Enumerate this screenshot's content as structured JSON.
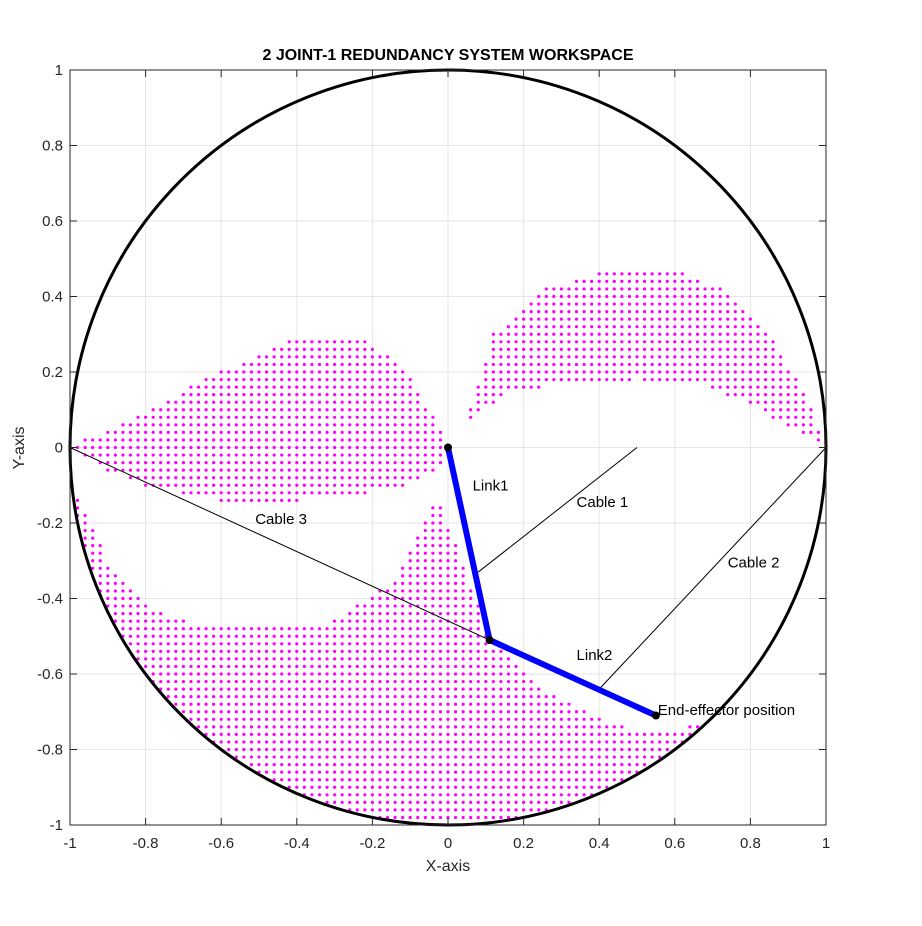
{
  "chart_data": {
    "type": "scatter",
    "title": "2 JOINT-1 REDUNDANCY SYSTEM WORKSPACE",
    "xlabel": "X-axis",
    "ylabel": "Y-axis",
    "xlim": [
      -1,
      1
    ],
    "ylim": [
      -1,
      1
    ],
    "grid": true,
    "x_ticks": [
      -1,
      -0.8,
      -0.6,
      -0.4,
      -0.2,
      0,
      0.2,
      0.4,
      0.6,
      0.8,
      1
    ],
    "y_ticks": [
      -1,
      -0.8,
      -0.6,
      -0.4,
      -0.2,
      0,
      0.2,
      0.4,
      0.6,
      0.8,
      1
    ],
    "x_tick_labels": [
      "-1",
      "-0.8",
      "-0.6",
      "-0.4",
      "-0.2",
      "0",
      "0.2",
      "0.4",
      "0.6",
      "0.8",
      "1"
    ],
    "y_tick_labels": [
      "-1",
      "-0.8",
      "-0.6",
      "-0.4",
      "-0.2",
      "0",
      "0.2",
      "0.4",
      "0.6",
      "0.8",
      "1"
    ],
    "workspace_circle": {
      "center": [
        0,
        0
      ],
      "radius": 1,
      "color": "#000000"
    },
    "workspace_points": {
      "color": "#ff00ff",
      "spacing": 0.02,
      "regions": [
        {
          "part": "left-lobe",
          "x_range": [
            -1,
            -0.02
          ],
          "upper_boundary": [
            [
              -1,
              0
            ],
            [
              -0.8,
              0.1
            ],
            [
              -0.6,
              0.2
            ],
            [
              -0.4,
              0.29
            ],
            [
              -0.3,
              0.3
            ],
            [
              -0.22,
              0.3
            ],
            [
              -0.1,
              0.18
            ],
            [
              -0.02,
              0.06
            ]
          ],
          "lower_boundary": [
            [
              -1,
              0
            ],
            [
              -0.9,
              -0.06
            ],
            [
              -0.8,
              -0.1
            ],
            [
              -0.6,
              -0.14
            ],
            [
              -0.4,
              -0.14
            ],
            [
              -0.2,
              -0.12
            ],
            [
              -0.08,
              -0.09
            ],
            [
              -0.02,
              -0.05
            ]
          ]
        },
        {
          "part": "right-lobe",
          "x_range": [
            0.06,
            1
          ],
          "upper_boundary": [
            [
              0.06,
              0.1
            ],
            [
              0.12,
              0.3
            ],
            [
              0.25,
              0.42
            ],
            [
              0.4,
              0.46
            ],
            [
              0.6,
              0.47
            ],
            [
              0.72,
              0.42
            ],
            [
              0.85,
              0.3
            ],
            [
              0.95,
              0.13
            ],
            [
              1,
              0
            ]
          ],
          "lower_boundary": [
            [
              0.06,
              0.08
            ],
            [
              0.15,
              0.14
            ],
            [
              0.3,
              0.17
            ],
            [
              0.5,
              0.18
            ],
            [
              0.65,
              0.17
            ],
            [
              0.8,
              0.12
            ],
            [
              0.9,
              0.05
            ],
            [
              0.98,
              0.02
            ]
          ]
        },
        {
          "part": "bottom-region",
          "x_range": [
            -0.98,
            0.99
          ],
          "upper_boundary": [
            [
              -0.98,
              -0.13
            ],
            [
              -0.9,
              -0.3
            ],
            [
              -0.8,
              -0.42
            ],
            [
              -0.65,
              -0.47
            ],
            [
              -0.45,
              -0.48
            ],
            [
              -0.3,
              -0.46
            ],
            [
              -0.15,
              -0.36
            ],
            [
              -0.06,
              -0.2
            ],
            [
              -0.03,
              -0.12
            ],
            [
              0.05,
              -0.34
            ],
            [
              0.12,
              -0.52
            ],
            [
              0.25,
              -0.64
            ],
            [
              0.4,
              -0.72
            ],
            [
              0.55,
              -0.76
            ],
            [
              0.7,
              -0.72
            ],
            [
              0.8,
              -0.63
            ],
            [
              0.9,
              -0.5
            ],
            [
              0.96,
              -0.35
            ],
            [
              0.99,
              -0.24
            ]
          ]
        }
      ]
    },
    "links": [
      {
        "name": "Link1",
        "points": [
          [
            0,
            0
          ],
          [
            0.11,
            -0.51
          ]
        ],
        "color": "#0000ff"
      },
      {
        "name": "Link2",
        "points": [
          [
            0.11,
            -0.51
          ],
          [
            0.55,
            -0.71
          ]
        ],
        "color": "#0000ff"
      }
    ],
    "joints": [
      [
        0,
        0
      ],
      [
        0.11,
        -0.51
      ],
      [
        0.55,
        -0.71
      ]
    ],
    "cables": [
      {
        "name": "Cable 1",
        "points": [
          [
            0.5,
            0
          ],
          [
            0.08,
            -0.33
          ]
        ]
      },
      {
        "name": "Cable 2",
        "points": [
          [
            1,
            0
          ],
          [
            0.4,
            -0.64
          ]
        ]
      },
      {
        "name": "Cable 3",
        "points": [
          [
            -1,
            0
          ],
          [
            0.11,
            -0.51
          ]
        ]
      }
    ],
    "annotations": [
      {
        "text": "Link1",
        "x": 0.065,
        "y": -0.1
      },
      {
        "text": "Cable 1",
        "x": 0.34,
        "y": -0.145
      },
      {
        "text": "Cable 2",
        "x": 0.74,
        "y": -0.305
      },
      {
        "text": "Cable 3",
        "x": -0.51,
        "y": -0.19
      },
      {
        "text": "Link2",
        "x": 0.34,
        "y": -0.55
      },
      {
        "text": "End-effector position",
        "x": 0.555,
        "y": -0.695
      }
    ]
  }
}
